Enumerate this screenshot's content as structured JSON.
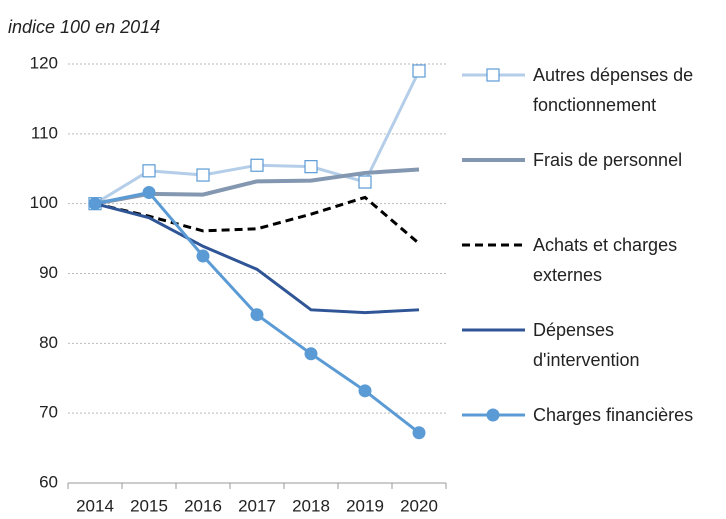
{
  "chart_data": {
    "type": "line",
    "subtitle": "indice 100 en 2014",
    "categories": [
      "2014",
      "2015",
      "2016",
      "2017",
      "2018",
      "2019",
      "2020"
    ],
    "series": [
      {
        "name": "Autres dépenses de fonctionnement",
        "color": "#b4cde8",
        "width": 3,
        "marker": "square-open",
        "values": [
          100,
          104.7,
          104.1,
          105.5,
          105.3,
          103.1,
          119
        ]
      },
      {
        "name": "Frais de personnel",
        "color": "#8497b0",
        "width": 4,
        "values": [
          100,
          101.4,
          101.3,
          103.2,
          103.3,
          104.4,
          104.9
        ]
      },
      {
        "name": "Achats et charges externes",
        "color": "#000000",
        "width": 3,
        "dash": true,
        "values": [
          100,
          98.2,
          96.1,
          96.4,
          98.5,
          100.9,
          94.3
        ]
      },
      {
        "name": "Dépenses d'intervention",
        "color": "#2f5597",
        "width": 3,
        "values": [
          100,
          98.0,
          93.9,
          90.6,
          84.8,
          84.4,
          84.8
        ]
      },
      {
        "name": "Charges financières",
        "color": "#5b9bd5",
        "width": 3,
        "marker": "circle",
        "values": [
          100,
          101.6,
          92.5,
          84.1,
          78.5,
          73.2,
          67.2
        ]
      }
    ],
    "ylim": [
      60,
      120
    ],
    "yticks": [
      60,
      70,
      80,
      90,
      100,
      110,
      120
    ],
    "grid": true
  }
}
